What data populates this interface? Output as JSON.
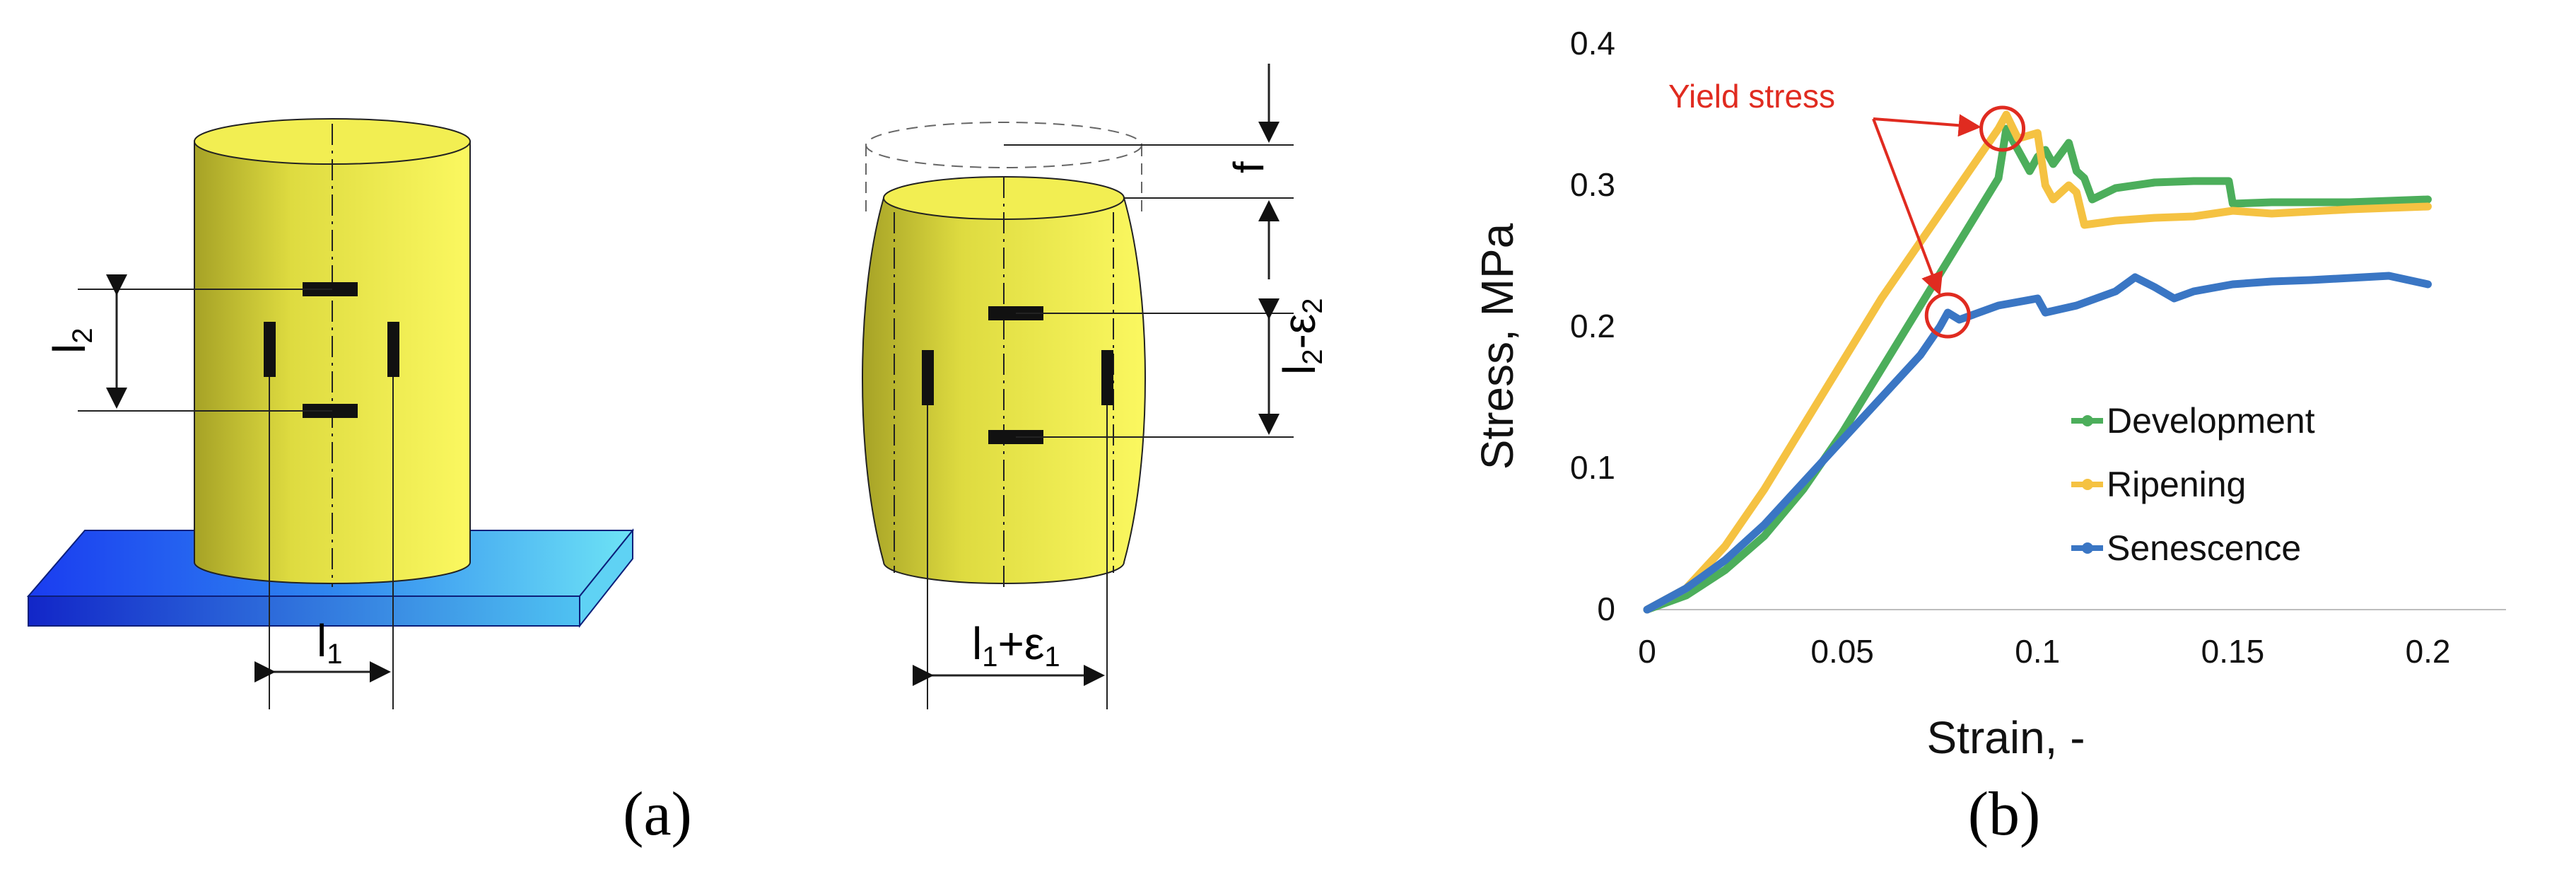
{
  "panels": {
    "a": {
      "caption": "(a)",
      "labels": {
        "l1": "l",
        "l1_sub": "1",
        "l2": "l",
        "l2_sub": "2",
        "f": "f",
        "l1_eps_base": "l",
        "l1_eps_sub": "1",
        "l1_eps_op": "+ε",
        "l1_eps_sub2": "1",
        "l2_eps_base": "l",
        "l2_eps_sub": "2",
        "l2_eps_op": "-ε",
        "l2_eps_sub2": "2"
      }
    },
    "b": {
      "caption": "(b)"
    }
  },
  "colors": {
    "cylinder": "#f4ef50",
    "plate": "#2a7cf0",
    "development": "#4cae5b",
    "ripening": "#f5c242",
    "senescence": "#3a76c4",
    "annotation": "#e02b20"
  },
  "chart_data": {
    "type": "line",
    "title": "",
    "xlabel": "Strain, -",
    "ylabel": "Stress, MPa",
    "xlim": [
      0,
      0.22
    ],
    "ylim": [
      0,
      0.4
    ],
    "xticks": [
      "0",
      "0.05",
      "0.1",
      "0.15",
      "0.2"
    ],
    "yticks": [
      "0",
      "0.1",
      "0.2",
      "0.3",
      "0.4"
    ],
    "grid": false,
    "legend": "center-right",
    "annotation": "Yield stress",
    "yield_points": [
      [
        0.091,
        0.34
      ],
      [
        0.077,
        0.208
      ]
    ],
    "series": [
      {
        "name": "Development",
        "color": "#4cae5b",
        "points": [
          [
            0,
            0
          ],
          [
            0.01,
            0.01
          ],
          [
            0.02,
            0.028
          ],
          [
            0.03,
            0.052
          ],
          [
            0.04,
            0.085
          ],
          [
            0.05,
            0.125
          ],
          [
            0.06,
            0.17
          ],
          [
            0.07,
            0.215
          ],
          [
            0.08,
            0.26
          ],
          [
            0.09,
            0.305
          ],
          [
            0.092,
            0.34
          ],
          [
            0.095,
            0.325
          ],
          [
            0.098,
            0.31
          ],
          [
            0.1,
            0.32
          ],
          [
            0.102,
            0.325
          ],
          [
            0.104,
            0.315
          ],
          [
            0.108,
            0.33
          ],
          [
            0.11,
            0.31
          ],
          [
            0.112,
            0.305
          ],
          [
            0.114,
            0.29
          ],
          [
            0.12,
            0.298
          ],
          [
            0.13,
            0.302
          ],
          [
            0.14,
            0.303
          ],
          [
            0.149,
            0.303
          ],
          [
            0.15,
            0.287
          ],
          [
            0.16,
            0.288
          ],
          [
            0.18,
            0.288
          ],
          [
            0.2,
            0.29
          ]
        ]
      },
      {
        "name": "Ripening",
        "color": "#f5c242",
        "points": [
          [
            0,
            0
          ],
          [
            0.01,
            0.015
          ],
          [
            0.02,
            0.045
          ],
          [
            0.03,
            0.085
          ],
          [
            0.04,
            0.13
          ],
          [
            0.05,
            0.175
          ],
          [
            0.06,
            0.22
          ],
          [
            0.07,
            0.26
          ],
          [
            0.08,
            0.3
          ],
          [
            0.09,
            0.34
          ],
          [
            0.092,
            0.35
          ],
          [
            0.095,
            0.333
          ],
          [
            0.1,
            0.337
          ],
          [
            0.102,
            0.3
          ],
          [
            0.104,
            0.29
          ],
          [
            0.108,
            0.3
          ],
          [
            0.11,
            0.295
          ],
          [
            0.112,
            0.272
          ],
          [
            0.12,
            0.275
          ],
          [
            0.13,
            0.277
          ],
          [
            0.14,
            0.278
          ],
          [
            0.15,
            0.282
          ],
          [
            0.16,
            0.28
          ],
          [
            0.18,
            0.283
          ],
          [
            0.2,
            0.285
          ]
        ]
      },
      {
        "name": "Senescence",
        "color": "#3a76c4",
        "points": [
          [
            0,
            0
          ],
          [
            0.01,
            0.015
          ],
          [
            0.02,
            0.035
          ],
          [
            0.03,
            0.06
          ],
          [
            0.04,
            0.09
          ],
          [
            0.05,
            0.12
          ],
          [
            0.06,
            0.15
          ],
          [
            0.07,
            0.18
          ],
          [
            0.075,
            0.2
          ],
          [
            0.077,
            0.21
          ],
          [
            0.08,
            0.205
          ],
          [
            0.09,
            0.215
          ],
          [
            0.1,
            0.22
          ],
          [
            0.102,
            0.21
          ],
          [
            0.11,
            0.215
          ],
          [
            0.12,
            0.225
          ],
          [
            0.125,
            0.235
          ],
          [
            0.13,
            0.228
          ],
          [
            0.135,
            0.22
          ],
          [
            0.14,
            0.225
          ],
          [
            0.15,
            0.23
          ],
          [
            0.16,
            0.232
          ],
          [
            0.17,
            0.233
          ],
          [
            0.19,
            0.236
          ],
          [
            0.2,
            0.23
          ]
        ]
      }
    ]
  }
}
